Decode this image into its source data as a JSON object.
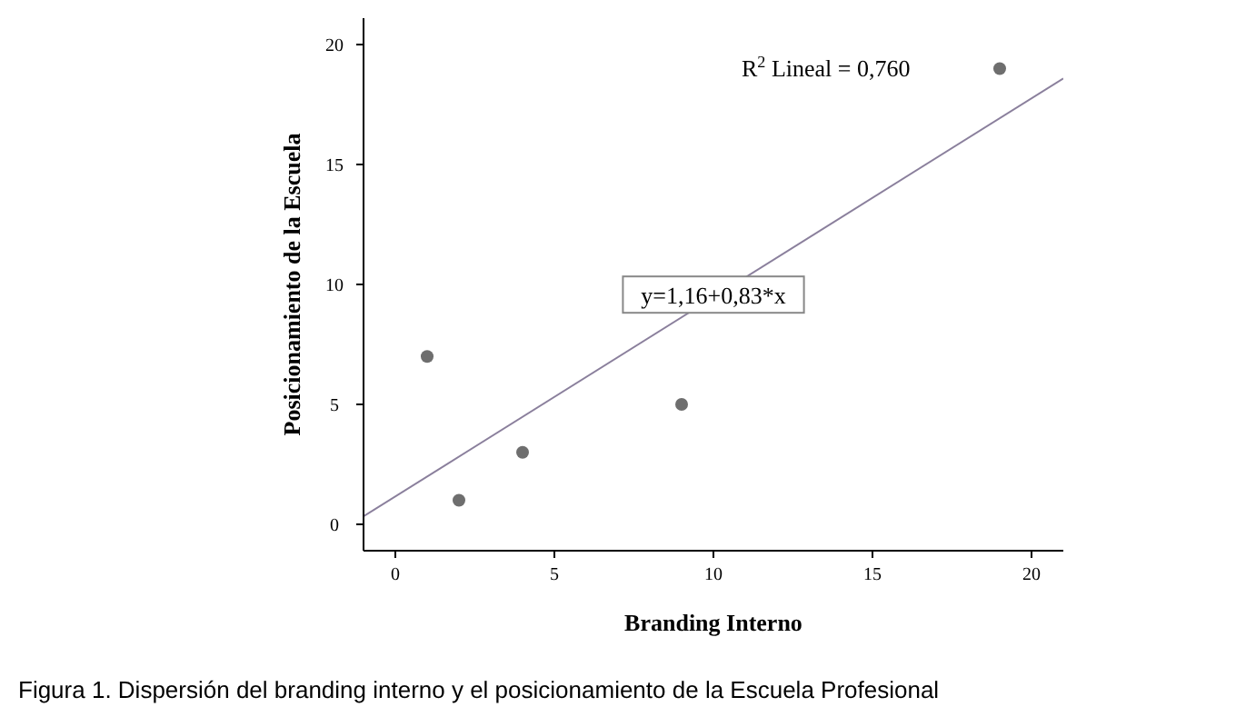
{
  "chart_data": {
    "type": "scatter",
    "xlabel": "Branding Interno",
    "ylabel": "Posicionamiento de la Escuela",
    "xlim": [
      -1,
      21
    ],
    "ylim": [
      -1.1,
      21.1
    ],
    "xticks": [
      0,
      5,
      10,
      15,
      20
    ],
    "yticks": [
      0,
      5,
      10,
      15,
      20
    ],
    "grid": false,
    "marker": "circle",
    "series": [
      {
        "color": "#6e6e6e",
        "x": [
          1,
          2,
          4,
          9,
          19
        ],
        "values": [
          7,
          1,
          3,
          5,
          19
        ]
      },
      {
        "type": "line",
        "color": "#8a7f9c",
        "x": [
          -1,
          21
        ],
        "values": [
          0.33,
          18.59
        ],
        "line_style": "solid",
        "marker": "none"
      }
    ],
    "annotations": [
      "R$^{2}$ Lineal = 0,760",
      {
        "text": "y=1,16+0,83*x",
        "x": 10,
        "y": 9.5
      },
      "Figura 1. Dispersión del branding interno y el posicionamiento de la Escuela Profesional"
    ]
  }
}
